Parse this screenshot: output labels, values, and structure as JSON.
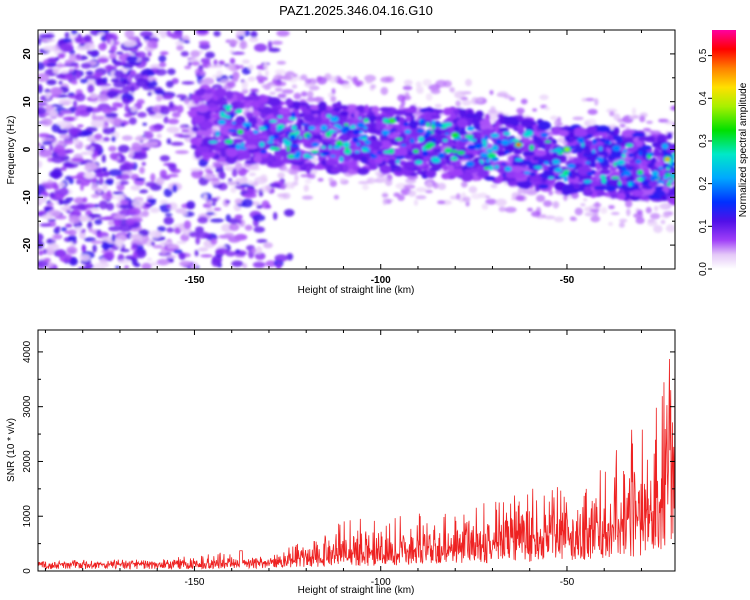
{
  "title": "PAZ1.2025.346.04.16.G10",
  "chart_data": [
    {
      "type": "heatmap",
      "xlabel": "Height of straight line (km)",
      "ylabel": "Frequency (Hz)",
      "xlim": [
        -192,
        -21
      ],
      "ylim": [
        -25,
        25
      ],
      "xticks": [
        -150,
        -100,
        -50
      ],
      "yticks": [
        -20,
        -10,
        0,
        10,
        20
      ],
      "colorbar": {
        "label": "Normalized spectral amplitude",
        "range": [
          0,
          0.56
        ],
        "ticks": [
          0.0,
          0.1,
          0.2,
          0.3,
          0.4,
          0.5
        ],
        "colormap": "white-violet-blue-cyan-green-yellow-red-magenta"
      },
      "features": {
        "ridge_center_hz": [
          {
            "x": -150,
            "y": 6
          },
          {
            "x": -125,
            "y": 3
          },
          {
            "x": -100,
            "y": 2
          },
          {
            "x": -75,
            "y": 1
          },
          {
            "x": -50,
            "y": -2
          },
          {
            "x": -21,
            "y": -4
          }
        ],
        "noise_region_x": [
          -192,
          -135
        ],
        "peak_amplitude_x": -63,
        "peak_amplitude_y": 1
      }
    },
    {
      "type": "line",
      "xlabel": "Height of straight line (km)",
      "ylabel": "SNR (10 * v/v)",
      "xlim": [
        -192,
        -21
      ],
      "ylim": [
        0,
        4400
      ],
      "xticks": [
        -150,
        -100,
        -50
      ],
      "yticks": [
        0,
        1000,
        2000,
        3000,
        4000
      ],
      "color": "#ee2222",
      "envelope": [
        {
          "x": -192,
          "mean": 120,
          "max": 200
        },
        {
          "x": -160,
          "mean": 120,
          "max": 210
        },
        {
          "x": -140,
          "mean": 130,
          "max": 370
        },
        {
          "x": -130,
          "mean": 150,
          "max": 240
        },
        {
          "x": -110,
          "mean": 280,
          "max": 980
        },
        {
          "x": -100,
          "mean": 330,
          "max": 1000
        },
        {
          "x": -80,
          "mean": 420,
          "max": 1100
        },
        {
          "x": -60,
          "mean": 560,
          "max": 1500
        },
        {
          "x": -50,
          "mean": 620,
          "max": 1600
        },
        {
          "x": -40,
          "mean": 700,
          "max": 1900
        },
        {
          "x": -30,
          "mean": 900,
          "max": 2900
        },
        {
          "x": -25,
          "mean": 1200,
          "max": 3400
        },
        {
          "x": -21,
          "mean": 2000,
          "max": 4350
        }
      ]
    }
  ]
}
